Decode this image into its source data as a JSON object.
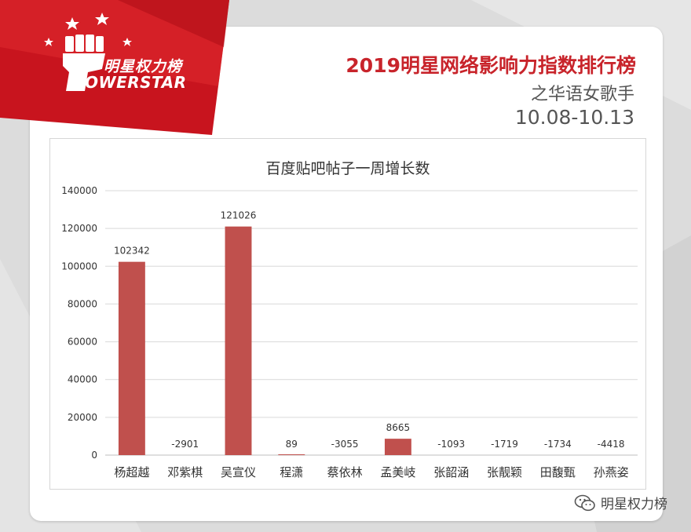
{
  "brand": {
    "name_cn": "明星权力榜",
    "name_en": "OWERSTAR",
    "footer": "明星权力榜",
    "footer_icon": "wechat-icon",
    "logo_icon": "fist-logo-icon"
  },
  "header": {
    "title": "2019明星网络影响力指数排行榜",
    "subtitle": "之华语女歌手",
    "date_range": "10.08-10.13"
  },
  "colors": {
    "accent": "#c8242b",
    "bar": "#c0504d",
    "text": "#555555"
  },
  "chart_data": {
    "type": "bar",
    "title": "百度贴吧帖子一周增长数",
    "categories": [
      "杨超越",
      "邓紫棋",
      "吴宣仪",
      "程潇",
      "蔡依林",
      "孟美岐",
      "张韶涵",
      "张靓颖",
      "田馥甄",
      "孙燕姿"
    ],
    "values": [
      102342,
      -2901,
      121026,
      89,
      -3055,
      8665,
      -1093,
      -1719,
      -1734,
      -4418
    ],
    "ylim": [
      0,
      140000
    ],
    "yticks": [
      0,
      20000,
      40000,
      60000,
      80000,
      100000,
      120000,
      140000
    ],
    "grid": true,
    "legend": "none"
  }
}
